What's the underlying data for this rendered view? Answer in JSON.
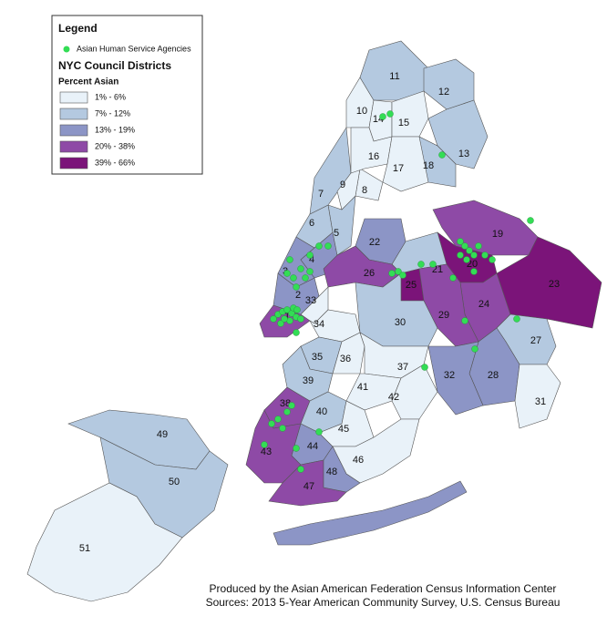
{
  "legend": {
    "title": "Legend",
    "symbol_label": "Asian Human Service Agencies",
    "layer_title": "NYC Council Districts",
    "subtitle": "Percent Asian",
    "classes": [
      {
        "label": "1% - 6%",
        "color": "#e9f2f9"
      },
      {
        "label": "7% - 12%",
        "color": "#b4c9e0"
      },
      {
        "label": "13% - 19%",
        "color": "#8c95c6"
      },
      {
        "label": "20% - 38%",
        "color": "#8e4aa6"
      },
      {
        "label": "39% - 66%",
        "color": "#7b1479"
      }
    ],
    "symbol_color": "#33dd55"
  },
  "districts": [
    {
      "label": "1",
      "color": "#8e4aa6"
    },
    {
      "label": "2",
      "color": "#8c95c6"
    },
    {
      "label": "3",
      "color": "#8c95c6"
    },
    {
      "label": "4",
      "color": "#8c95c6"
    },
    {
      "label": "5",
      "color": "#b4c9e0"
    },
    {
      "label": "6",
      "color": "#b4c9e0"
    },
    {
      "label": "7",
      "color": "#b4c9e0"
    },
    {
      "label": "8",
      "color": "#e9f2f9"
    },
    {
      "label": "9",
      "color": "#e9f2f9"
    },
    {
      "label": "10",
      "color": "#e9f2f9"
    },
    {
      "label": "11",
      "color": "#b4c9e0"
    },
    {
      "label": "12",
      "color": "#b4c9e0"
    },
    {
      "label": "13",
      "color": "#b4c9e0"
    },
    {
      "label": "14",
      "color": "#e9f2f9"
    },
    {
      "label": "15",
      "color": "#e9f2f9"
    },
    {
      "label": "16",
      "color": "#e9f2f9"
    },
    {
      "label": "17",
      "color": "#e9f2f9"
    },
    {
      "label": "18",
      "color": "#b4c9e0"
    },
    {
      "label": "19",
      "color": "#8e4aa6"
    },
    {
      "label": "20",
      "color": "#7b1479"
    },
    {
      "label": "21",
      "color": "#b4c9e0"
    },
    {
      "label": "22",
      "color": "#8c95c6"
    },
    {
      "label": "23",
      "color": "#7b1479"
    },
    {
      "label": "24",
      "color": "#8e4aa6"
    },
    {
      "label": "25",
      "color": "#7b1479"
    },
    {
      "label": "26",
      "color": "#8e4aa6"
    },
    {
      "label": "27",
      "color": "#b4c9e0"
    },
    {
      "label": "28",
      "color": "#8c95c6"
    },
    {
      "label": "29",
      "color": "#8e4aa6"
    },
    {
      "label": "30",
      "color": "#b4c9e0"
    },
    {
      "label": "31",
      "color": "#e9f2f9"
    },
    {
      "label": "32",
      "color": "#8c95c6"
    },
    {
      "label": "33",
      "color": "#e9f2f9"
    },
    {
      "label": "34",
      "color": "#e9f2f9"
    },
    {
      "label": "35",
      "color": "#b4c9e0"
    },
    {
      "label": "36",
      "color": "#e9f2f9"
    },
    {
      "label": "37",
      "color": "#e9f2f9"
    },
    {
      "label": "38",
      "color": "#8e4aa6"
    },
    {
      "label": "39",
      "color": "#b4c9e0"
    },
    {
      "label": "40",
      "color": "#b4c9e0"
    },
    {
      "label": "41",
      "color": "#e9f2f9"
    },
    {
      "label": "42",
      "color": "#e9f2f9"
    },
    {
      "label": "43",
      "color": "#8e4aa6"
    },
    {
      "label": "44",
      "color": "#8c95c6"
    },
    {
      "label": "45",
      "color": "#e9f2f9"
    },
    {
      "label": "46",
      "color": "#e9f2f9"
    },
    {
      "label": "47",
      "color": "#8e4aa6"
    },
    {
      "label": "48",
      "color": "#8c95c6"
    },
    {
      "label": "49",
      "color": "#b4c9e0"
    },
    {
      "label": "50",
      "color": "#b4c9e0"
    },
    {
      "label": "51",
      "color": "#e9f2f9"
    }
  ],
  "credits": [
    "Produced by the Asian American Federation Census Information Center",
    "Sources: 2013 5-Year American Community Survey, U.S. Census Bureau"
  ]
}
